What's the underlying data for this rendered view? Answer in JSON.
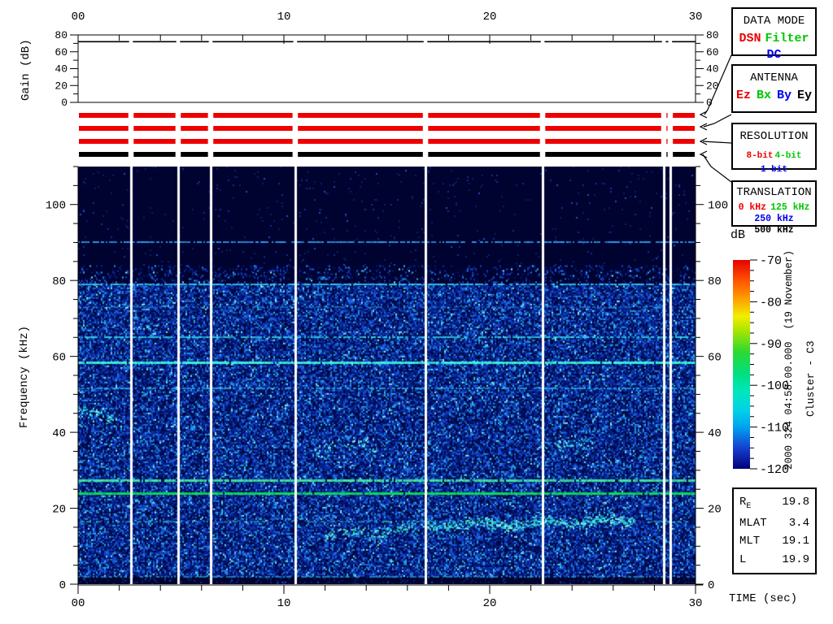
{
  "annotations": {
    "timestamp": "2000 324 04:58:00.000  (19 November)",
    "spacecraft": "Cluster - C3"
  },
  "legend_boxes": [
    {
      "name": "data-mode",
      "title": "DATA MODE",
      "options": [
        {
          "label": "DSN",
          "color": "#ee0000"
        },
        {
          "label": "Filter",
          "color": "#00c800"
        },
        {
          "label": "DC",
          "color": "#0000f0"
        }
      ],
      "selected": "DSN"
    },
    {
      "name": "antenna",
      "title": "ANTENNA",
      "options": [
        {
          "label": "Ez",
          "color": "#ee0000"
        },
        {
          "label": "Bx",
          "color": "#00c800"
        },
        {
          "label": "By",
          "color": "#0000f0"
        },
        {
          "label": "Ey",
          "color": "#000000"
        }
      ],
      "selected": "Ez"
    },
    {
      "name": "resolution",
      "title": "RESOLUTION",
      "options": [
        {
          "label": "8-bit",
          "color": "#ee0000"
        },
        {
          "label": "4-bit",
          "color": "#00c800"
        },
        {
          "label": "1-bit",
          "color": "#0000f0"
        }
      ],
      "selected": "8-bit"
    },
    {
      "name": "translation",
      "title": "TRANSLATION",
      "options": [
        {
          "label": "0 kHz",
          "color": "#ee0000"
        },
        {
          "label": "125 kHz",
          "color": "#00c800"
        },
        {
          "label": "250 kHz",
          "color": "#0000f0"
        },
        {
          "label": "500 kHz",
          "color": "#000000"
        }
      ],
      "selected": "500 kHz"
    }
  ],
  "status_bars": [
    {
      "name": "data-mode-bar",
      "value": "DSN",
      "color": "#ee0000"
    },
    {
      "name": "antenna-bar",
      "value": "Ez",
      "color": "#ee0000"
    },
    {
      "name": "resolution-bar",
      "value": "8-bit",
      "color": "#ee0000"
    },
    {
      "name": "translation-bar",
      "value": "500 kHz",
      "color": "#000000"
    }
  ],
  "ephemeris": {
    "rows": [
      {
        "label": "R",
        "sub": "E",
        "value": "19.8"
      },
      {
        "label": "MLAT",
        "sub": "",
        "value": "3.4"
      },
      {
        "label": "MLT",
        "sub": "",
        "value": "19.1"
      },
      {
        "label": "L",
        "sub": "",
        "value": "19.9"
      }
    ]
  },
  "chart_data": [
    {
      "id": "gain_panel",
      "type": "line",
      "ylabel": "Gain (dB)",
      "x_range": [
        0,
        30
      ],
      "y_range": [
        0,
        80
      ],
      "x_ticks": [
        0,
        10,
        20,
        30
      ],
      "x_tick_labels": [
        "00",
        "10",
        "20",
        "30"
      ],
      "x_minor_step": 2,
      "y_ticks": [
        0,
        20,
        40,
        60,
        80
      ],
      "y_minor_step": 10,
      "series": [
        {
          "name": "receiver-gain",
          "value_db": 72,
          "style": "constant-line-with-gaps"
        }
      ]
    },
    {
      "id": "spectrogram",
      "type": "heatmap",
      "xlabel": "TIME (sec)",
      "ylabel": "Frequency (kHz)",
      "x_range": [
        0,
        30
      ],
      "y_range": [
        0,
        110
      ],
      "x_ticks": [
        0,
        10,
        20,
        30
      ],
      "x_tick_labels": [
        "00",
        "10",
        "20",
        "30"
      ],
      "x_minor_step": 2,
      "y_ticks": [
        0,
        20,
        40,
        60,
        80,
        100
      ],
      "y_minor_step": 5,
      "colorbar": {
        "label": "dB",
        "range_db": [
          -120,
          -70
        ],
        "ticks": [
          -70,
          -80,
          -90,
          -100,
          -110,
          -120
        ],
        "minor_step": 2.5,
        "stops": [
          [
            0,
            "#e60000"
          ],
          [
            0.1,
            "#ff5500"
          ],
          [
            0.18,
            "#ff9900"
          ],
          [
            0.27,
            "#f2ee00"
          ],
          [
            0.34,
            "#a8e400"
          ],
          [
            0.44,
            "#2cd932"
          ],
          [
            0.55,
            "#00df85"
          ],
          [
            0.63,
            "#00e6bc"
          ],
          [
            0.72,
            "#00d2e8"
          ],
          [
            0.8,
            "#00a2ee"
          ],
          [
            0.9,
            "#1540d0"
          ],
          [
            1,
            "#000078"
          ]
        ]
      },
      "noise_regions": [
        {
          "f_min": 2,
          "f_max": 79,
          "density": 1.0,
          "palette": "dense"
        },
        {
          "f_min": 79,
          "f_max": 84,
          "density": 0.28,
          "palette": "dense"
        },
        {
          "f_min": 84,
          "f_max": 110,
          "density": 0.018,
          "palette": "dim"
        },
        {
          "f_min": 0,
          "f_max": 2,
          "density": 0.12,
          "palette": "dim"
        }
      ],
      "spectral_lines_khz": [
        {
          "f": 90,
          "strength": 0.75,
          "color": "#2fa0f0"
        },
        {
          "f": 79,
          "strength": 0.8,
          "color": "#38c8f2"
        },
        {
          "f": 73,
          "strength": 0.3,
          "color": "#2d86d2"
        },
        {
          "f": 65,
          "strength": 0.7,
          "color": "#35d8e8"
        },
        {
          "f": 58.5,
          "strength": 1.0,
          "color": "#3cf0d8"
        },
        {
          "f": 51.5,
          "strength": 0.55,
          "color": "#30b8e8"
        },
        {
          "f": 27.5,
          "strength": 0.9,
          "color": "#3fe89a"
        },
        {
          "f": 24,
          "strength": 1.0,
          "color": "#0fdc52"
        },
        {
          "f": 16.5,
          "strength": 0.3,
          "color": "#2fc8a8"
        },
        {
          "f": 2,
          "strength": 0.5,
          "color": "#2f9ad8"
        }
      ],
      "enhancements": [
        {
          "t_start": 0,
          "t_end": 1.8,
          "f_start": 46,
          "f_end": 43,
          "f_spread": 2.2,
          "strength": 0.6
        },
        {
          "t_start": 11.5,
          "t_end": 14.5,
          "f_start": 36,
          "f_end": 37,
          "f_spread": 2.4,
          "strength": 0.3
        },
        {
          "t_start": 22.5,
          "t_end": 25,
          "f_start": 36,
          "f_end": 37.5,
          "f_spread": 2.4,
          "strength": 0.3
        },
        {
          "t_start": 12,
          "t_end": 17,
          "f_start": 13,
          "f_end": 15,
          "f_spread": 1.7,
          "strength": 0.5
        },
        {
          "t_start": 17,
          "t_end": 27,
          "f_start": 15.5,
          "f_end": 17,
          "f_spread": 1.7,
          "strength": 0.85
        }
      ],
      "data_gaps_sec": [
        2.57,
        4.86,
        6.44,
        10.55,
        16.88,
        22.57,
        28.46,
        28.77
      ]
    }
  ]
}
